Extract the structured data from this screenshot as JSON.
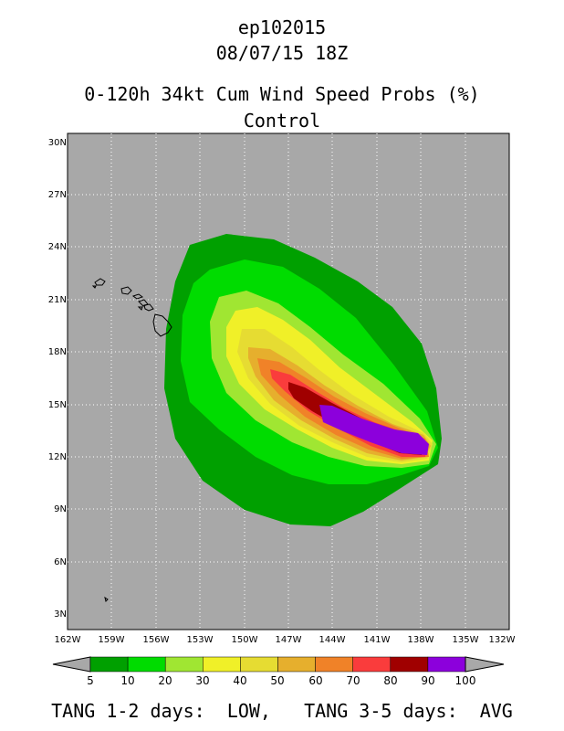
{
  "title": {
    "storm_id": "ep102015",
    "datetime": "08/07/15 18Z",
    "product": "0-120h 34kt Cum Wind Speed Probs (%)",
    "run": "Control"
  },
  "map": {
    "lat_labels": [
      "30N",
      "27N",
      "24N",
      "21N",
      "18N",
      "15N",
      "12N",
      "9N",
      "6N",
      "3N"
    ],
    "lon_labels": [
      "162W",
      "159W",
      "156W",
      "153W",
      "150W",
      "147W",
      "144W",
      "141W",
      "138W",
      "135W",
      "132W"
    ],
    "background_color": "#a8a8a8",
    "grid": "dotted"
  },
  "colorbar": {
    "labels": [
      "5",
      "10",
      "20",
      "30",
      "40",
      "50",
      "60",
      "70",
      "80",
      "90",
      "100"
    ],
    "colors": [
      "#00a000",
      "#00dc00",
      "#a0e632",
      "#f0f028",
      "#e6dc32",
      "#e6af2d",
      "#f08228",
      "#fa3c3c",
      "#a00000",
      "#8c00dc"
    ]
  },
  "footer": "TANG 1-2 days:  LOW,   TANG 3-5 days:  AVG"
}
